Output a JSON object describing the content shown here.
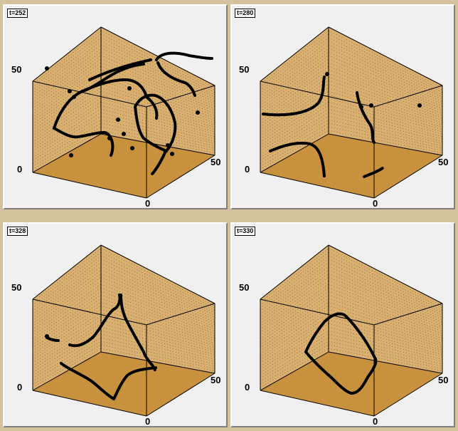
{
  "panels": [
    {
      "time_label": "t=252",
      "axis": {
        "z_max": "50",
        "origin": "0",
        "x_zero": "0",
        "y_max": "50"
      }
    },
    {
      "time_label": "t=280",
      "axis": {
        "z_max": "50",
        "origin": "0",
        "x_zero": "0",
        "y_max": "50"
      }
    },
    {
      "time_label": "t=328",
      "axis": {
        "z_max": "50",
        "origin": "0",
        "x_zero": "0",
        "y_max": "50"
      }
    },
    {
      "time_label": "t=330",
      "axis": {
        "z_max": "50",
        "origin": "0",
        "x_zero": "0",
        "y_max": "50"
      }
    }
  ],
  "colors": {
    "box_fill": "#d9b070",
    "floor_fill": "#c8913e",
    "filament": "#000000"
  }
}
